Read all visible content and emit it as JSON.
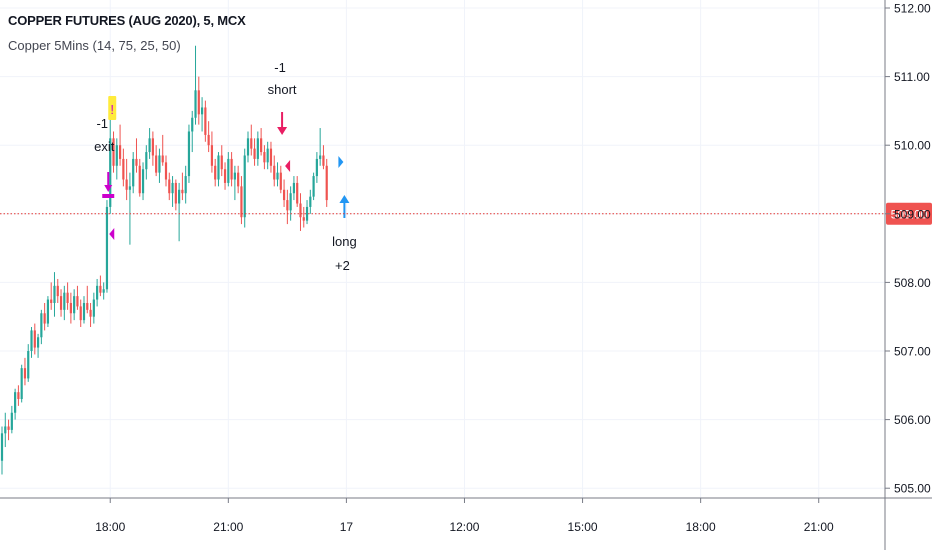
{
  "header": {
    "title": "COPPER FUTURES (AUG 2020), 5, MCX",
    "indicator": "Copper 5Mins (14, 75, 25, 50)"
  },
  "colors": {
    "up": "#26a69a",
    "down": "#ef5350",
    "price_line": "#e53935",
    "price_label_bg": "#ef5350",
    "exit_marker": "#cc00cc",
    "short_marker": "#e91e63",
    "long_marker": "#2196f3",
    "flag_bg": "#ffeb3b",
    "grid": "#f0f3fa",
    "axis_text": "#131722"
  },
  "chart_data": {
    "type": "candlestick",
    "symbol": "COPPER FUTURES (AUG 2020), 5, MCX",
    "interval": "5",
    "y_ticks": [
      "505.00",
      "506.00",
      "507.00",
      "508.00",
      "509.00",
      "510.00",
      "511.00",
      "512.00"
    ],
    "ylim": [
      504.8,
      512.2
    ],
    "x_ticks": [
      {
        "label": "18:00",
        "bar": 33
      },
      {
        "label": "21:00",
        "bar": 69
      },
      {
        "label": "17",
        "bar": 105
      },
      {
        "label": "12:00",
        "bar": 141
      },
      {
        "label": "15:00",
        "bar": 177
      },
      {
        "label": "18:00",
        "bar": 213
      },
      {
        "label": "21:00",
        "bar": 249
      }
    ],
    "bars_visible": 270,
    "last_price": "509.00",
    "last_price_value": 509.0,
    "candles": [
      [
        505.4,
        505.9,
        505.2,
        505.8
      ],
      [
        505.8,
        506.1,
        505.6,
        505.9
      ],
      [
        505.9,
        506.0,
        505.7,
        505.85
      ],
      [
        505.85,
        506.2,
        505.8,
        506.1
      ],
      [
        506.1,
        506.45,
        506.0,
        506.4
      ],
      [
        506.4,
        506.5,
        506.2,
        506.3
      ],
      [
        506.3,
        506.8,
        506.25,
        506.75
      ],
      [
        506.75,
        506.9,
        506.5,
        506.6
      ],
      [
        506.6,
        507.1,
        506.55,
        507.0
      ],
      [
        507.0,
        507.35,
        506.9,
        507.3
      ],
      [
        507.3,
        507.4,
        506.95,
        507.05
      ],
      [
        507.05,
        507.25,
        506.9,
        507.2
      ],
      [
        507.2,
        507.6,
        507.1,
        507.55
      ],
      [
        507.55,
        507.7,
        507.3,
        507.4
      ],
      [
        507.4,
        507.8,
        507.35,
        507.75
      ],
      [
        507.75,
        508.0,
        507.6,
        507.7
      ],
      [
        507.7,
        508.15,
        507.5,
        507.95
      ],
      [
        507.95,
        508.05,
        507.7,
        507.8
      ],
      [
        507.8,
        507.9,
        507.5,
        507.6
      ],
      [
        507.6,
        507.95,
        507.45,
        507.85
      ],
      [
        507.85,
        508.0,
        507.6,
        507.7
      ],
      [
        507.7,
        507.85,
        507.4,
        507.55
      ],
      [
        507.55,
        507.9,
        507.45,
        507.8
      ],
      [
        507.8,
        507.95,
        507.6,
        507.65
      ],
      [
        507.65,
        507.75,
        507.35,
        507.45
      ],
      [
        507.45,
        507.8,
        507.4,
        507.7
      ],
      [
        507.7,
        507.95,
        507.55,
        507.6
      ],
      [
        507.6,
        507.7,
        507.35,
        507.5
      ],
      [
        507.5,
        507.85,
        507.4,
        507.75
      ],
      [
        507.75,
        508.05,
        507.65,
        507.95
      ],
      [
        507.95,
        508.1,
        507.8,
        507.85
      ],
      [
        507.85,
        508.0,
        507.75,
        507.9
      ],
      [
        507.9,
        509.2,
        507.85,
        509.1
      ],
      [
        509.1,
        510.4,
        509.0,
        510.1
      ],
      [
        510.1,
        510.2,
        509.6,
        509.7
      ],
      [
        509.7,
        510.1,
        509.5,
        510.0
      ],
      [
        510.0,
        510.3,
        509.7,
        509.8
      ],
      [
        509.8,
        509.95,
        509.4,
        509.5
      ],
      [
        509.5,
        509.8,
        509.2,
        509.35
      ],
      [
        509.35,
        509.6,
        508.55,
        509.4
      ],
      [
        509.4,
        509.9,
        509.3,
        509.8
      ],
      [
        509.8,
        510.1,
        509.6,
        509.7
      ],
      [
        509.7,
        509.8,
        509.25,
        509.3
      ],
      [
        509.3,
        509.75,
        509.2,
        509.65
      ],
      [
        509.65,
        510.0,
        509.5,
        509.9
      ],
      [
        509.9,
        510.25,
        509.8,
        510.1
      ],
      [
        510.1,
        510.2,
        509.7,
        509.85
      ],
      [
        509.85,
        510.0,
        509.55,
        509.6
      ],
      [
        509.6,
        509.95,
        509.45,
        509.85
      ],
      [
        509.85,
        510.15,
        509.7,
        509.75
      ],
      [
        509.75,
        509.85,
        509.4,
        509.5
      ],
      [
        509.5,
        509.6,
        509.2,
        509.3
      ],
      [
        509.3,
        509.55,
        509.1,
        509.45
      ],
      [
        509.45,
        509.5,
        509.05,
        509.15
      ],
      [
        509.15,
        509.45,
        508.6,
        509.35
      ],
      [
        509.35,
        509.6,
        509.2,
        509.3
      ],
      [
        509.3,
        509.7,
        509.15,
        509.55
      ],
      [
        509.55,
        510.3,
        509.45,
        510.2
      ],
      [
        510.2,
        510.5,
        509.9,
        510.4
      ],
      [
        510.4,
        511.45,
        510.3,
        510.8
      ],
      [
        510.8,
        511.0,
        510.3,
        510.45
      ],
      [
        510.45,
        510.7,
        510.2,
        510.55
      ],
      [
        510.55,
        510.65,
        510.05,
        510.15
      ],
      [
        510.15,
        510.35,
        509.9,
        510.0
      ],
      [
        510.0,
        510.2,
        509.6,
        509.7
      ],
      [
        509.7,
        509.8,
        509.4,
        509.5
      ],
      [
        509.5,
        509.9,
        509.4,
        509.85
      ],
      [
        509.85,
        510.0,
        509.55,
        509.65
      ],
      [
        509.65,
        509.75,
        509.35,
        509.45
      ],
      [
        509.45,
        509.9,
        509.4,
        509.8
      ],
      [
        509.8,
        509.9,
        509.4,
        509.5
      ],
      [
        509.5,
        509.7,
        509.2,
        509.6
      ],
      [
        509.6,
        509.7,
        509.3,
        509.4
      ],
      [
        509.4,
        509.55,
        508.85,
        508.95
      ],
      [
        508.95,
        509.95,
        508.8,
        509.85
      ],
      [
        509.85,
        510.2,
        509.75,
        510.1
      ],
      [
        510.1,
        510.3,
        509.85,
        509.95
      ],
      [
        509.95,
        510.1,
        509.7,
        509.8
      ],
      [
        509.8,
        510.2,
        509.7,
        510.1
      ],
      [
        510.1,
        510.25,
        509.85,
        509.9
      ],
      [
        509.9,
        510.0,
        509.65,
        509.75
      ],
      [
        509.75,
        510.05,
        509.65,
        509.95
      ],
      [
        509.95,
        510.05,
        509.6,
        509.7
      ],
      [
        509.7,
        509.85,
        509.4,
        509.5
      ],
      [
        509.5,
        509.75,
        509.4,
        509.6
      ],
      [
        509.6,
        509.7,
        509.3,
        509.35
      ],
      [
        509.35,
        509.5,
        509.1,
        509.2
      ],
      [
        509.2,
        509.35,
        508.85,
        509.05
      ],
      [
        509.05,
        509.4,
        508.9,
        509.3
      ],
      [
        509.3,
        509.55,
        509.2,
        509.45
      ],
      [
        509.45,
        509.55,
        509.1,
        509.15
      ],
      [
        509.15,
        509.3,
        508.75,
        508.95
      ],
      [
        508.95,
        509.1,
        508.8,
        508.9
      ],
      [
        508.9,
        509.2,
        508.85,
        509.1
      ],
      [
        509.1,
        509.35,
        509.0,
        509.25
      ],
      [
        509.25,
        509.6,
        509.2,
        509.55
      ],
      [
        509.55,
        509.9,
        509.45,
        509.8
      ],
      [
        509.8,
        510.25,
        509.7,
        509.85
      ],
      [
        509.85,
        510.0,
        509.65,
        509.7
      ],
      [
        509.7,
        509.8,
        509.1,
        509.2
      ]
    ],
    "annotations": [
      {
        "bar": 33,
        "kind": "exit",
        "lines": [
          "-1",
          "exit"
        ],
        "flag": "!",
        "marker": "down-arrow",
        "color": "#cc00cc"
      },
      {
        "bar": 86,
        "kind": "short",
        "lines": [
          "-1",
          "short"
        ],
        "marker": "down-arrow",
        "color": "#e91e63"
      },
      {
        "bar": 105,
        "kind": "long",
        "lines": [
          "long",
          "+2"
        ],
        "marker": "up-arrow",
        "color": "#2196f3"
      }
    ]
  }
}
